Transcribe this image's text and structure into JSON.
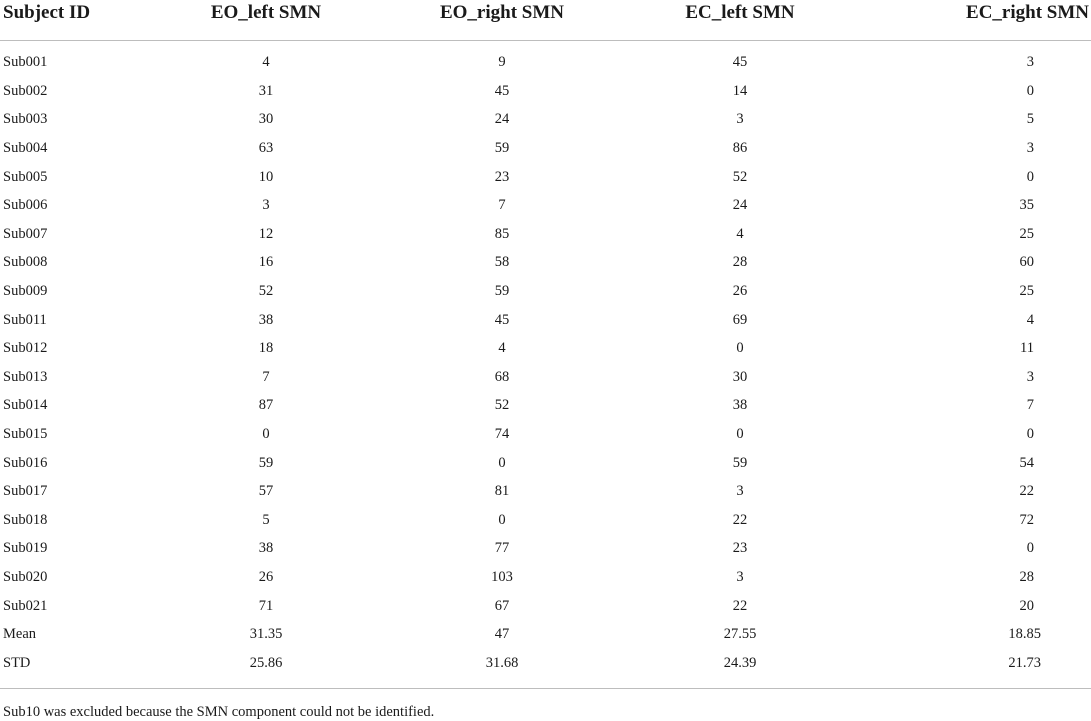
{
  "table": {
    "headers": [
      "Subject ID",
      "EO_left SMN",
      "EO_right SMN",
      "EC_left SMN",
      "EC_right SMN"
    ],
    "rows": [
      [
        "Sub001",
        "4",
        "9",
        "45",
        "3"
      ],
      [
        "Sub002",
        "31",
        "45",
        "14",
        "0"
      ],
      [
        "Sub003",
        "30",
        "24",
        "3",
        "5"
      ],
      [
        "Sub004",
        "63",
        "59",
        "86",
        "3"
      ],
      [
        "Sub005",
        "10",
        "23",
        "52",
        "0"
      ],
      [
        "Sub006",
        "3",
        "7",
        "24",
        "35"
      ],
      [
        "Sub007",
        "12",
        "85",
        "4",
        "25"
      ],
      [
        "Sub008",
        "16",
        "58",
        "28",
        "60"
      ],
      [
        "Sub009",
        "52",
        "59",
        "26",
        "25"
      ],
      [
        "Sub011",
        "38",
        "45",
        "69",
        "4"
      ],
      [
        "Sub012",
        "18",
        "4",
        "0",
        "11"
      ],
      [
        "Sub013",
        "7",
        "68",
        "30",
        "3"
      ],
      [
        "Sub014",
        "87",
        "52",
        "38",
        "7"
      ],
      [
        "Sub015",
        "0",
        "74",
        "0",
        "0"
      ],
      [
        "Sub016",
        "59",
        "0",
        "59",
        "54"
      ],
      [
        "Sub017",
        "57",
        "81",
        "3",
        "22"
      ],
      [
        "Sub018",
        "5",
        "0",
        "22",
        "72"
      ],
      [
        "Sub019",
        "38",
        "77",
        "23",
        "0"
      ],
      [
        "Sub020",
        "26",
        "103",
        "3",
        "28"
      ],
      [
        "Sub021",
        "71",
        "67",
        "22",
        "20"
      ],
      [
        "Mean",
        "31.35",
        "47",
        "27.55",
        "18.85"
      ],
      [
        "STD",
        "25.86",
        "31.68",
        "24.39",
        "21.73"
      ]
    ],
    "footnote": "Sub10 was excluded because the SMN component could not be identified."
  }
}
